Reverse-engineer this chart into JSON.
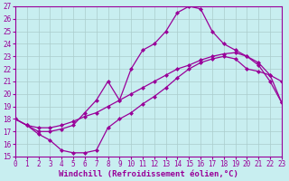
{
  "title": "",
  "xlabel": "Windchill (Refroidissement éolien,°C)",
  "ylabel": "",
  "xlim": [
    0,
    23
  ],
  "ylim": [
    15,
    27
  ],
  "xticks": [
    0,
    1,
    2,
    3,
    4,
    5,
    6,
    7,
    8,
    9,
    10,
    11,
    12,
    13,
    14,
    15,
    16,
    17,
    18,
    19,
    20,
    21,
    22,
    23
  ],
  "yticks": [
    15,
    16,
    17,
    18,
    19,
    20,
    21,
    22,
    23,
    24,
    25,
    26,
    27
  ],
  "bg_color": "#c8eef0",
  "line_color": "#990099",
  "grid_color": "#aacccc",
  "line1_x": [
    0,
    1,
    2,
    3,
    4,
    5,
    6,
    7,
    8,
    9,
    10,
    11,
    12,
    13,
    14,
    15,
    16,
    17,
    18,
    19,
    20,
    21,
    22,
    23
  ],
  "line1_y": [
    18.0,
    17.5,
    16.8,
    16.3,
    15.5,
    15.3,
    15.3,
    15.5,
    17.3,
    18.0,
    18.5,
    19.2,
    19.8,
    20.5,
    21.3,
    22.0,
    22.5,
    22.8,
    23.0,
    22.8,
    22.0,
    21.8,
    21.5,
    19.3
  ],
  "line2_x": [
    0,
    1,
    2,
    3,
    4,
    5,
    6,
    7,
    8,
    9,
    10,
    11,
    12,
    13,
    14,
    15,
    16,
    17,
    18,
    19,
    20,
    21,
    22,
    23
  ],
  "line2_y": [
    18.0,
    17.5,
    17.3,
    17.3,
    17.5,
    17.8,
    18.2,
    18.5,
    19.0,
    19.5,
    20.0,
    20.5,
    21.0,
    21.5,
    22.0,
    22.3,
    22.7,
    23.0,
    23.2,
    23.3,
    23.0,
    22.5,
    21.5,
    21.0
  ],
  "line3_x": [
    0,
    1,
    2,
    3,
    4,
    5,
    6,
    7,
    8,
    9,
    10,
    11,
    12,
    13,
    14,
    15,
    16,
    17,
    18,
    19,
    20,
    21,
    22,
    23
  ],
  "line3_y": [
    18.0,
    17.5,
    17.0,
    17.0,
    17.2,
    17.5,
    18.5,
    19.5,
    21.0,
    19.5,
    22.0,
    23.5,
    24.0,
    25.0,
    26.5,
    27.0,
    26.8,
    25.0,
    24.0,
    23.5,
    23.0,
    22.3,
    21.0,
    19.3
  ],
  "marker": "D",
  "markersize": 2.0,
  "linewidth": 0.9,
  "xlabel_fontsize": 6.5,
  "tick_fontsize": 5.5
}
